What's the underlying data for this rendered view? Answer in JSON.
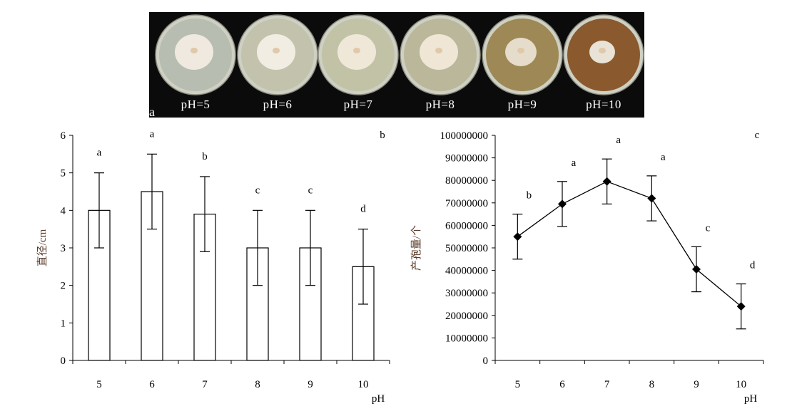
{
  "photo_panel": {
    "panel_label": "a",
    "plates": [
      {
        "label": "pH=5",
        "agar": "#b7bdb0",
        "colony": "#efe9df"
      },
      {
        "label": "pH=6",
        "agar": "#c3c3ad",
        "colony": "#f1ede2"
      },
      {
        "label": "pH=7",
        "agar": "#c2c2a7",
        "colony": "#efe8d8"
      },
      {
        "label": "pH=8",
        "agar": "#bbb79a",
        "colony": "#efe6d6"
      },
      {
        "label": "pH=9",
        "agar": "#9e8855",
        "colony": "#e6dccb"
      },
      {
        "label": "pH=10",
        "agar": "#8a5a2e",
        "colony": "#e9e2d6"
      }
    ]
  },
  "chart_data": [
    {
      "type": "bar",
      "ylabel": "直径/cm",
      "xlabel": "pH",
      "categories": [
        "5",
        "6",
        "7",
        "8",
        "9",
        "10"
      ],
      "values": [
        4.0,
        4.5,
        3.9,
        3.0,
        3.0,
        2.5
      ],
      "errors": [
        1.0,
        1.0,
        1.0,
        1.0,
        1.0,
        1.0
      ],
      "significance": [
        "a",
        "a",
        "b",
        "c",
        "c",
        "d"
      ],
      "ylim": [
        0,
        6
      ],
      "yticks": [
        "0",
        "1",
        "2",
        "3",
        "4",
        "5",
        "6"
      ],
      "legend_letter": "b",
      "grid": false
    },
    {
      "type": "line",
      "ylabel": "产孢量/个",
      "xlabel": "pH",
      "categories": [
        "5",
        "6",
        "7",
        "8",
        "9",
        "10"
      ],
      "values": [
        55000000,
        69500000,
        79500000,
        72000000,
        40500000,
        24000000
      ],
      "errors": [
        10000000,
        10000000,
        10000000,
        10000000,
        10000000,
        10000000
      ],
      "significance": [
        "b",
        "a",
        "a",
        "a",
        "c",
        "d"
      ],
      "ylim": [
        0,
        100000000
      ],
      "yticks": [
        "0",
        "10000000",
        "20000000",
        "30000000",
        "40000000",
        "50000000",
        "60000000",
        "70000000",
        "80000000",
        "90000000",
        "100000000"
      ],
      "legend_letter": "c",
      "marker": "diamond",
      "grid": false
    }
  ]
}
